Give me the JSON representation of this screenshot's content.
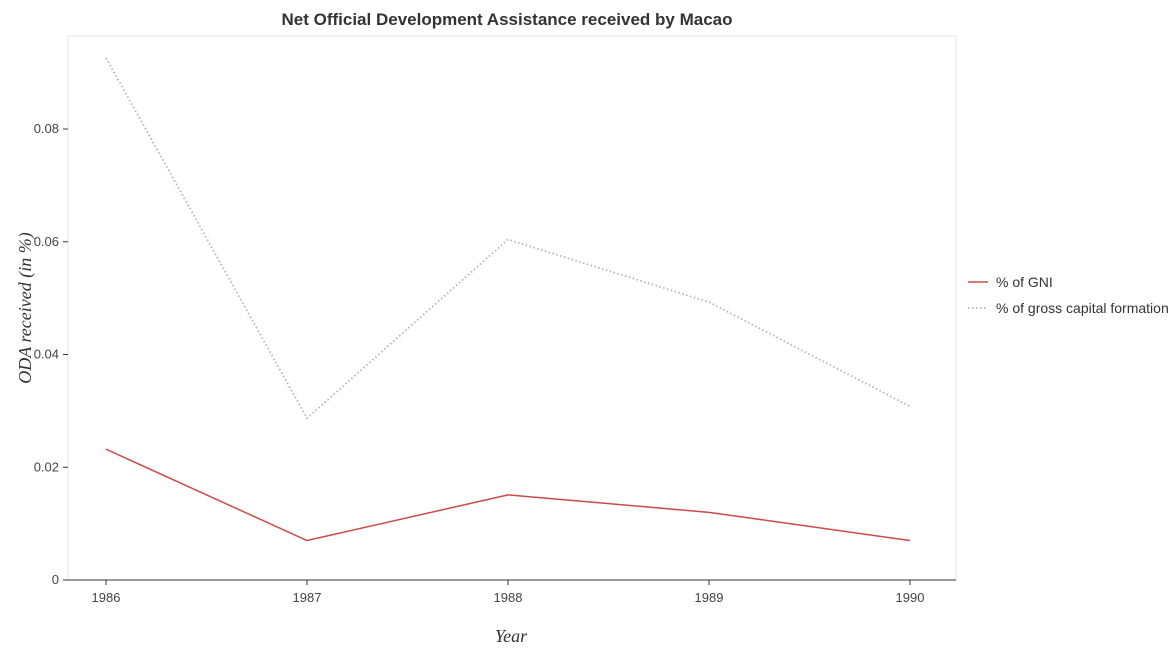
{
  "chart_data": {
    "type": "line",
    "title": "Net Official Development Assistance received by Macao",
    "xlabel": "Year",
    "ylabel": "ODA received (in %)",
    "categories": [
      "1986",
      "1987",
      "1988",
      "1989",
      "1990"
    ],
    "y_ticks": [
      "0",
      "0.02",
      "0.04",
      "0.06",
      "0.08"
    ],
    "ylim": [
      0,
      0.0965
    ],
    "grid": false,
    "legend_position": "right",
    "series": [
      {
        "name": "% of GNI",
        "color": "#cd4a4a",
        "dash": "solid",
        "values": [
          0.0232,
          0.007,
          0.0151,
          0.012,
          0.007
        ]
      },
      {
        "name": "% of gross capital formation",
        "color": "#b4b4b4",
        "dash": "dotted",
        "values": [
          0.0926,
          0.0287,
          0.0604,
          0.0493,
          0.0308
        ]
      }
    ]
  }
}
